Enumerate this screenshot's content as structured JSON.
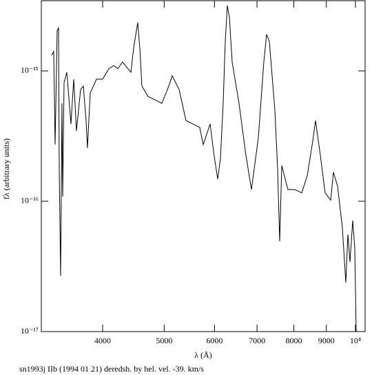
{
  "chart_data": {
    "type": "line",
    "caption": "sn1993j IIb (1994 01 21) deredsh. by hel. vel.   -39. km/s",
    "xlabel": "λ (Å)",
    "ylabel": "fλ (arbitrary units)",
    "xscale": "log",
    "yscale": "log",
    "color": "#000000",
    "xlim": [
      3203,
      10358
    ],
    "ylim": [
      1e-17,
      3.46e-15
    ],
    "xticks": [
      4000,
      5000,
      6000,
      7000,
      8000,
      9000,
      {
        "value": 10000,
        "label": "10⁴"
      }
    ],
    "yticks": [
      {
        "value": 1e-17,
        "label": "10⁻¹⁷"
      },
      {
        "value": 1e-16,
        "label": "10⁻¹⁶"
      },
      {
        "value": 1e-15,
        "label": "10⁻¹⁵"
      }
    ],
    "x": [
      3325,
      3350,
      3367,
      3392,
      3409,
      3418,
      3435,
      3452,
      3461,
      3478,
      3513,
      3566,
      3602,
      3638,
      3693,
      3730,
      3767,
      3786,
      3824,
      3911,
      4000,
      4091,
      4163,
      4226,
      4300,
      4431,
      4476,
      4543,
      4577,
      4612,
      4717,
      4836,
      4958,
      5084,
      5148,
      5278,
      5411,
      5548,
      5688,
      5760,
      5906,
      5980,
      6070,
      6131,
      6192,
      6239,
      6286,
      6333,
      6397,
      6558,
      6724,
      6860,
      7034,
      7175,
      7247,
      7320,
      7468,
      7543,
      7600,
      7657,
      7830,
      8028,
      8232,
      8398,
      8567,
      8653,
      8806,
      8961,
      9142,
      9234,
      9373,
      9538,
      9658,
      9731,
      9804,
      9903,
      9977,
      10027
    ],
    "values": [
      1.32e-15,
      1.41e-15,
      2.72e-16,
      2.03e-15,
      2.15e-15,
      1.67e-16,
      2.68e-17,
      5.64e-16,
      1.09e-16,
      8.13e-16,
      9.76e-16,
      3.92e-16,
      8.64e-16,
      3.47e-16,
      7.2e-16,
      7.65e-16,
      4.16e-16,
      2.56e-16,
      6.77e-16,
      8.64e-16,
      8.64e-16,
      1.04e-15,
      1.1e-15,
      1.04e-15,
      1.17e-15,
      9.76e-16,
      1.5e-15,
      2.35e-15,
      1.5e-15,
      7.65e-16,
      6.37e-16,
      6e-16,
      5.64e-16,
      7.65e-16,
      9.18e-16,
      7.2e-16,
      4.16e-16,
      3.92e-16,
      3.68e-16,
      2.72e-16,
      3.92e-16,
      2.4e-16,
      1.48e-16,
      2.13e-16,
      5.64e-16,
      1.69e-15,
      3.18e-15,
      2.59e-15,
      1.17e-15,
      5.64e-16,
      2.26e-16,
      1.23e-16,
      3.07e-16,
      1.17e-15,
      1.91e-15,
      1.69e-15,
      4.99e-16,
      1.77e-16,
      4.93e-17,
      1.88e-16,
      1.23e-16,
      1.23e-16,
      1.16e-16,
      1.57e-16,
      2.89e-16,
      4.16e-16,
      2.26e-16,
      1.16e-16,
      1.02e-16,
      1.67e-16,
      1.31e-16,
      6.29e-17,
      2.38e-17,
      5.57e-17,
      3.42e-17,
      7.11e-17,
      4.37e-17,
      1e-17
    ]
  }
}
